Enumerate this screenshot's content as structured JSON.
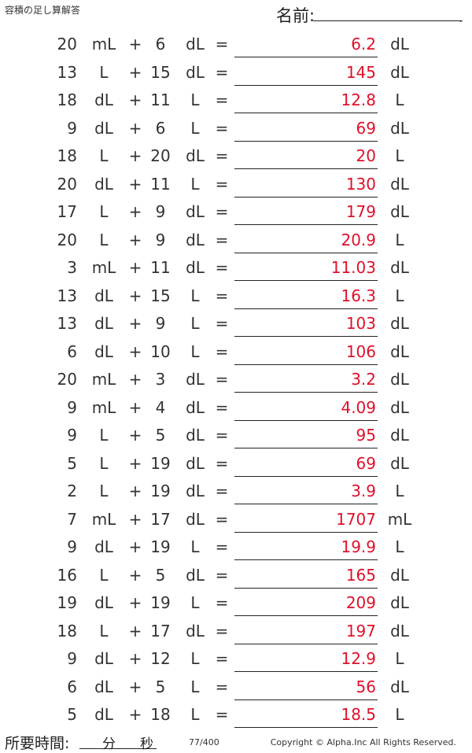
{
  "header": {
    "title": "容積の足し算解答",
    "name_label": "名前:"
  },
  "problems": [
    {
      "a": "20",
      "ua": "mL",
      "b": "6",
      "ub": "dL",
      "ans": "6.2",
      "u": "dL"
    },
    {
      "a": "13",
      "ua": "L",
      "b": "15",
      "ub": "dL",
      "ans": "145",
      "u": "dL"
    },
    {
      "a": "18",
      "ua": "dL",
      "b": "11",
      "ub": "L",
      "ans": "12.8",
      "u": "L"
    },
    {
      "a": "9",
      "ua": "dL",
      "b": "6",
      "ub": "L",
      "ans": "69",
      "u": "dL"
    },
    {
      "a": "18",
      "ua": "L",
      "b": "20",
      "ub": "dL",
      "ans": "20",
      "u": "L"
    },
    {
      "a": "20",
      "ua": "dL",
      "b": "11",
      "ub": "L",
      "ans": "130",
      "u": "dL"
    },
    {
      "a": "17",
      "ua": "L",
      "b": "9",
      "ub": "dL",
      "ans": "179",
      "u": "dL"
    },
    {
      "a": "20",
      "ua": "L",
      "b": "9",
      "ub": "dL",
      "ans": "20.9",
      "u": "L"
    },
    {
      "a": "3",
      "ua": "mL",
      "b": "11",
      "ub": "dL",
      "ans": "11.03",
      "u": "dL"
    },
    {
      "a": "13",
      "ua": "dL",
      "b": "15",
      "ub": "L",
      "ans": "16.3",
      "u": "L"
    },
    {
      "a": "13",
      "ua": "dL",
      "b": "9",
      "ub": "L",
      "ans": "103",
      "u": "dL"
    },
    {
      "a": "6",
      "ua": "dL",
      "b": "10",
      "ub": "L",
      "ans": "106",
      "u": "dL"
    },
    {
      "a": "20",
      "ua": "mL",
      "b": "3",
      "ub": "dL",
      "ans": "3.2",
      "u": "dL"
    },
    {
      "a": "9",
      "ua": "mL",
      "b": "4",
      "ub": "dL",
      "ans": "4.09",
      "u": "dL"
    },
    {
      "a": "9",
      "ua": "L",
      "b": "5",
      "ub": "dL",
      "ans": "95",
      "u": "dL"
    },
    {
      "a": "5",
      "ua": "L",
      "b": "19",
      "ub": "dL",
      "ans": "69",
      "u": "dL"
    },
    {
      "a": "2",
      "ua": "L",
      "b": "19",
      "ub": "dL",
      "ans": "3.9",
      "u": "L"
    },
    {
      "a": "7",
      "ua": "mL",
      "b": "17",
      "ub": "dL",
      "ans": "1707",
      "u": "mL"
    },
    {
      "a": "9",
      "ua": "dL",
      "b": "19",
      "ub": "L",
      "ans": "19.9",
      "u": "L"
    },
    {
      "a": "16",
      "ua": "L",
      "b": "5",
      "ub": "dL",
      "ans": "165",
      "u": "dL"
    },
    {
      "a": "19",
      "ua": "dL",
      "b": "19",
      "ub": "L",
      "ans": "209",
      "u": "dL"
    },
    {
      "a": "18",
      "ua": "L",
      "b": "17",
      "ub": "dL",
      "ans": "197",
      "u": "dL"
    },
    {
      "a": "9",
      "ua": "dL",
      "b": "12",
      "ub": "L",
      "ans": "12.9",
      "u": "L"
    },
    {
      "a": "6",
      "ua": "dL",
      "b": "5",
      "ub": "L",
      "ans": "56",
      "u": "dL"
    },
    {
      "a": "5",
      "ua": "dL",
      "b": "18",
      "ub": "L",
      "ans": "18.5",
      "u": "L"
    }
  ],
  "symbols": {
    "plus": "+",
    "equals": "="
  },
  "footer": {
    "time_label": "所要時間:",
    "minutes_label": "分",
    "seconds_label": "秒",
    "page": "77/400",
    "copyright": "Copyright © Alpha.Inc All Rights Reserved."
  },
  "colors": {
    "answer": "#e0102a"
  }
}
